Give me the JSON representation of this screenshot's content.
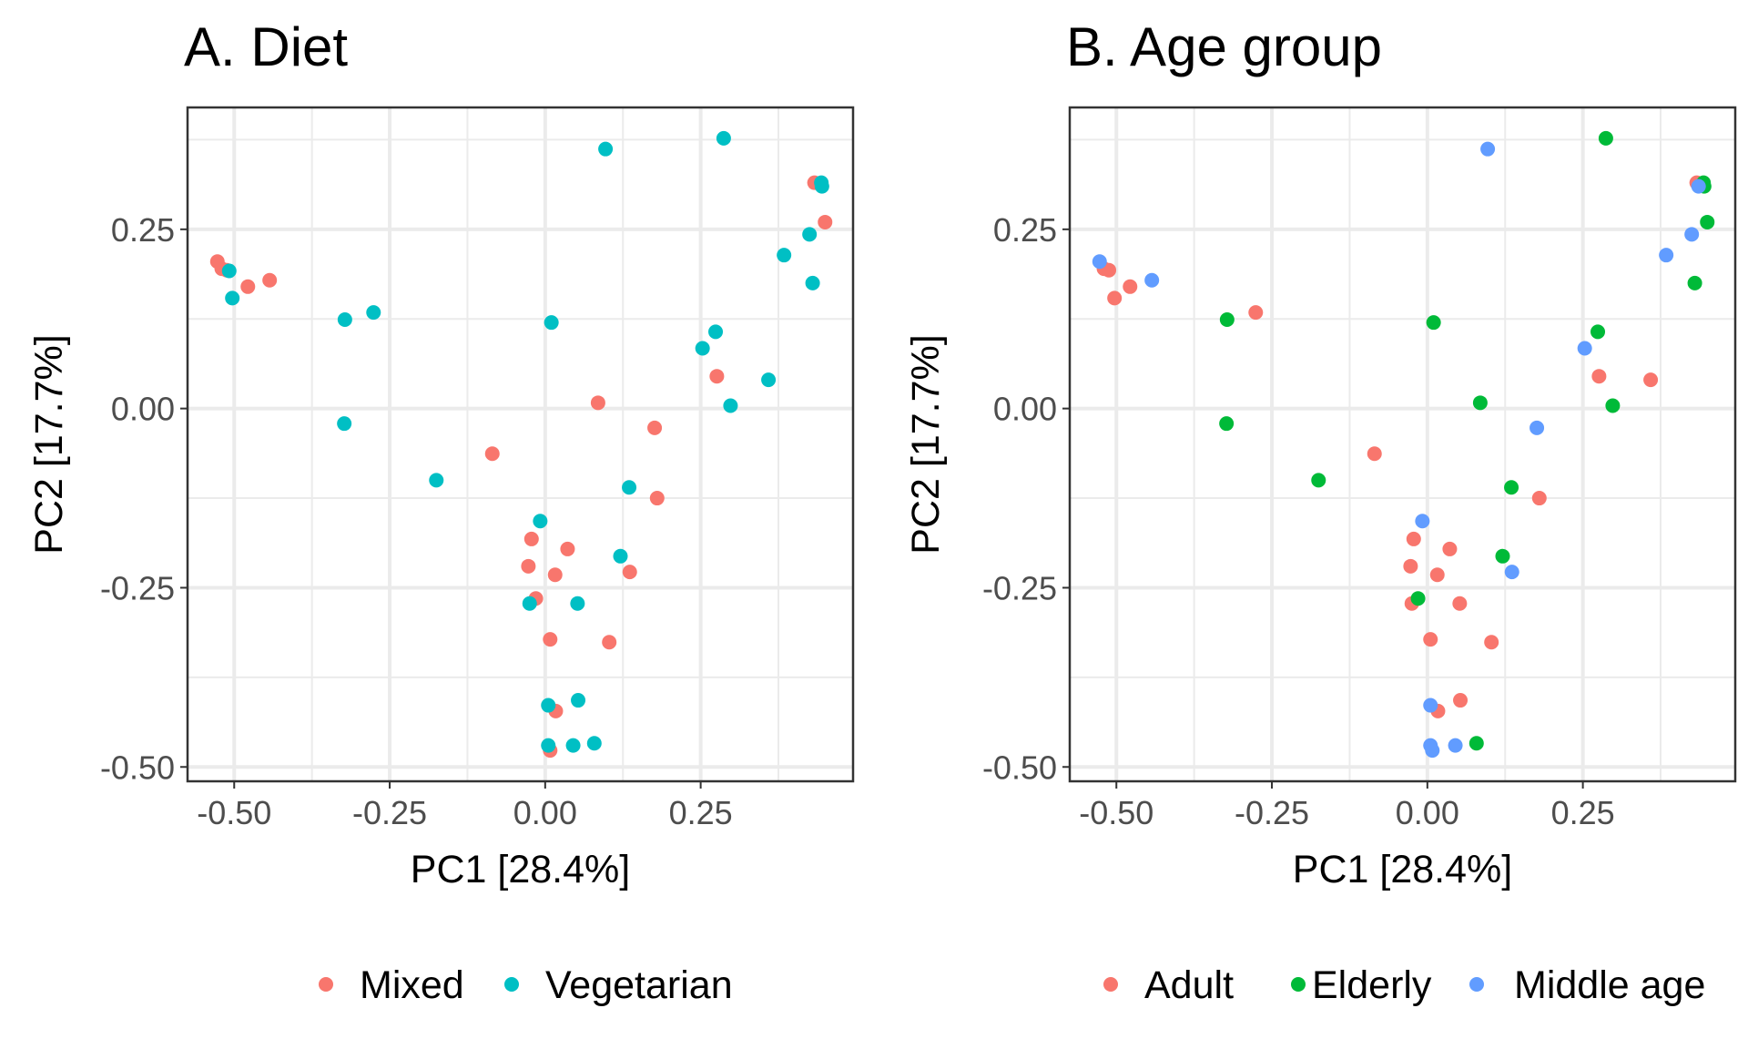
{
  "chart_data": [
    {
      "type": "scatter",
      "title": "A. Diet",
      "xlabel": "PC1 [28.4%]",
      "ylabel": "PC2 [17.7%]",
      "xlim": [
        -0.575,
        0.495
      ],
      "ylim": [
        -0.52,
        0.42
      ],
      "xticks": [
        -0.5,
        -0.25,
        0.0,
        0.25
      ],
      "xtick_labels": [
        "-0.50",
        "-0.25",
        "0.00",
        "0.25"
      ],
      "yticks": [
        -0.5,
        -0.25,
        0.0,
        0.25
      ],
      "ytick_labels": [
        "-0.50",
        "-0.25",
        "0.00",
        "0.25"
      ],
      "grid": true,
      "legend_position": "bottom",
      "series": [
        {
          "name": "Mixed",
          "color": "#F8766D",
          "points": [
            [
              -0.527,
              0.205
            ],
            [
              -0.52,
              0.195
            ],
            [
              -0.512,
              0.193
            ],
            [
              -0.478,
              0.17
            ],
            [
              -0.443,
              0.179
            ],
            [
              0.433,
              0.315
            ],
            [
              0.45,
              0.26
            ],
            [
              0.276,
              0.045
            ],
            [
              0.085,
              0.008
            ],
            [
              0.176,
              -0.027
            ],
            [
              -0.085,
              -0.063
            ],
            [
              0.18,
              -0.125
            ],
            [
              -0.022,
              -0.182
            ],
            [
              0.036,
              -0.196
            ],
            [
              -0.027,
              -0.22
            ],
            [
              0.016,
              -0.232
            ],
            [
              0.136,
              -0.228
            ],
            [
              -0.015,
              -0.265
            ],
            [
              0.008,
              -0.322
            ],
            [
              0.103,
              -0.326
            ],
            [
              0.017,
              -0.422
            ],
            [
              0.008,
              -0.477
            ]
          ]
        },
        {
          "name": "Vegetarian",
          "color": "#00BFC4",
          "points": [
            [
              -0.508,
              0.192
            ],
            [
              -0.503,
              0.154
            ],
            [
              -0.322,
              0.124
            ],
            [
              -0.276,
              0.134
            ],
            [
              -0.323,
              -0.021
            ],
            [
              -0.175,
              -0.1
            ],
            [
              0.097,
              0.362
            ],
            [
              0.287,
              0.377
            ],
            [
              0.444,
              0.315
            ],
            [
              0.445,
              0.31
            ],
            [
              0.425,
              0.243
            ],
            [
              0.384,
              0.214
            ],
            [
              0.43,
              0.175
            ],
            [
              0.01,
              0.12
            ],
            [
              0.274,
              0.107
            ],
            [
              0.253,
              0.084
            ],
            [
              0.359,
              0.04
            ],
            [
              0.298,
              0.004
            ],
            [
              0.135,
              -0.11
            ],
            [
              0.121,
              -0.206
            ],
            [
              -0.008,
              -0.157
            ],
            [
              -0.025,
              -0.272
            ],
            [
              0.052,
              -0.272
            ],
            [
              0.005,
              -0.414
            ],
            [
              0.053,
              -0.407
            ],
            [
              0.005,
              -0.47
            ],
            [
              0.045,
              -0.47
            ],
            [
              0.079,
              -0.467
            ]
          ]
        }
      ]
    },
    {
      "type": "scatter",
      "title": "B. Age group",
      "xlabel": "PC1 [28.4%]",
      "ylabel": "PC2 [17.7%]",
      "xlim": [
        -0.575,
        0.495
      ],
      "ylim": [
        -0.52,
        0.42
      ],
      "xticks": [
        -0.5,
        -0.25,
        0.0,
        0.25
      ],
      "xtick_labels": [
        "-0.50",
        "-0.25",
        "0.00",
        "0.25"
      ],
      "yticks": [
        -0.5,
        -0.25,
        0.0,
        0.25
      ],
      "ytick_labels": [
        "-0.50",
        "-0.25",
        "0.00",
        "0.25"
      ],
      "grid": true,
      "legend_position": "bottom",
      "series": [
        {
          "name": "Adult",
          "color": "#F8766D",
          "points": [
            [
              -0.52,
              0.195
            ],
            [
              -0.512,
              0.193
            ],
            [
              -0.503,
              0.154
            ],
            [
              -0.478,
              0.17
            ],
            [
              -0.276,
              0.134
            ],
            [
              0.433,
              0.315
            ],
            [
              0.276,
              0.045
            ],
            [
              0.359,
              0.04
            ],
            [
              -0.085,
              -0.063
            ],
            [
              0.18,
              -0.125
            ],
            [
              -0.022,
              -0.182
            ],
            [
              0.036,
              -0.196
            ],
            [
              -0.027,
              -0.22
            ],
            [
              0.016,
              -0.232
            ],
            [
              -0.025,
              -0.272
            ],
            [
              0.052,
              -0.272
            ],
            [
              0.005,
              -0.322
            ],
            [
              0.103,
              -0.326
            ],
            [
              0.053,
              -0.407
            ],
            [
              0.017,
              -0.422
            ]
          ]
        },
        {
          "name": "Elderly",
          "color": "#00BA38",
          "points": [
            [
              -0.322,
              0.124
            ],
            [
              -0.323,
              -0.021
            ],
            [
              -0.175,
              -0.1
            ],
            [
              0.287,
              0.377
            ],
            [
              0.444,
              0.315
            ],
            [
              0.445,
              0.31
            ],
            [
              0.45,
              0.26
            ],
            [
              0.43,
              0.175
            ],
            [
              0.01,
              0.12
            ],
            [
              0.274,
              0.107
            ],
            [
              0.298,
              0.004
            ],
            [
              0.085,
              0.008
            ],
            [
              0.135,
              -0.11
            ],
            [
              0.121,
              -0.206
            ],
            [
              -0.015,
              -0.265
            ],
            [
              0.079,
              -0.467
            ]
          ]
        },
        {
          "name": "Middle age",
          "color": "#619CFF",
          "points": [
            [
              -0.527,
              0.205
            ],
            [
              -0.443,
              0.179
            ],
            [
              0.097,
              0.362
            ],
            [
              0.425,
              0.243
            ],
            [
              0.384,
              0.214
            ],
            [
              0.436,
              0.31
            ],
            [
              0.253,
              0.084
            ],
            [
              0.176,
              -0.027
            ],
            [
              -0.008,
              -0.157
            ],
            [
              0.136,
              -0.228
            ],
            [
              0.005,
              -0.414
            ],
            [
              0.005,
              -0.47
            ],
            [
              0.045,
              -0.47
            ],
            [
              0.008,
              -0.477
            ]
          ]
        }
      ]
    }
  ]
}
